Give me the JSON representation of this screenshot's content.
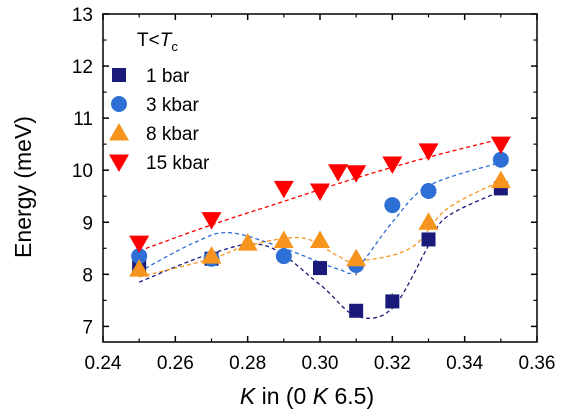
{
  "chart_data": {
    "type": "scatter",
    "title": "",
    "xlabel_italic": "K",
    "xlabel_rest": " in (0 ",
    "xlabel_italic2": "K",
    "xlabel_end": " 6.5)",
    "ylabel": "Energy (meV)",
    "xlim": [
      0.24,
      0.36
    ],
    "ylim": [
      6.7,
      13
    ],
    "xticks": [
      "0.24",
      "0.26",
      "0.28",
      "0.30",
      "0.32",
      "0.34",
      "0.36"
    ],
    "yticks": [
      "7",
      "8",
      "9",
      "10",
      "11",
      "12",
      "13"
    ],
    "grid": false,
    "legend_placement": "top-left",
    "legend_title_main": "T<",
    "legend_title_italic": "T",
    "legend_title_sub": "c",
    "series": [
      {
        "name": "1 bar",
        "marker": "square",
        "color": "#1a1a7a",
        "x": [
          0.25,
          0.27,
          0.3,
          0.31,
          0.32,
          0.33,
          0.35
        ],
        "y": [
          8.15,
          8.3,
          8.12,
          7.3,
          7.48,
          8.67,
          9.65
        ],
        "errors": [
          0,
          0,
          0,
          0,
          0.15,
          0,
          0
        ],
        "trend": [
          [
            0.25,
            7.85
          ],
          [
            0.27,
            8.4
          ],
          [
            0.285,
            8.55
          ],
          [
            0.3,
            7.8
          ],
          [
            0.31,
            7.2
          ],
          [
            0.32,
            7.35
          ],
          [
            0.33,
            8.55
          ],
          [
            0.335,
            9.1
          ],
          [
            0.35,
            9.6
          ]
        ]
      },
      {
        "name": "3 kbar",
        "marker": "circle",
        "color": "#2e6fd6",
        "x": [
          0.25,
          0.27,
          0.29,
          0.31,
          0.32,
          0.33,
          0.35
        ],
        "y": [
          8.35,
          8.3,
          8.35,
          8.18,
          9.33,
          9.6,
          10.2
        ],
        "errors": [
          0,
          0,
          0,
          0.2,
          0,
          0,
          0
        ],
        "trend": [
          [
            0.25,
            8.05
          ],
          [
            0.265,
            8.6
          ],
          [
            0.275,
            8.8
          ],
          [
            0.29,
            8.5
          ],
          [
            0.305,
            8.1
          ],
          [
            0.31,
            8.1
          ],
          [
            0.32,
            9.0
          ],
          [
            0.33,
            9.7
          ],
          [
            0.35,
            10.15
          ]
        ]
      },
      {
        "name": "8 kbar",
        "marker": "triangle-up",
        "color": "#f7941d",
        "x": [
          0.25,
          0.27,
          0.28,
          0.29,
          0.3,
          0.31,
          0.33,
          0.35
        ],
        "y": [
          8.1,
          8.35,
          8.6,
          8.65,
          8.65,
          8.3,
          9.0,
          9.8
        ],
        "errors": [
          0,
          0,
          0,
          0,
          0,
          0,
          0,
          0
        ],
        "trend": [
          [
            0.25,
            7.95
          ],
          [
            0.27,
            8.3
          ],
          [
            0.28,
            8.55
          ],
          [
            0.295,
            8.7
          ],
          [
            0.305,
            8.35
          ],
          [
            0.31,
            8.25
          ],
          [
            0.325,
            8.5
          ],
          [
            0.335,
            9.25
          ],
          [
            0.35,
            9.8
          ]
        ]
      },
      {
        "name": "15 kbar",
        "marker": "triangle-down",
        "color": "#ff0000",
        "x": [
          0.25,
          0.27,
          0.29,
          0.3,
          0.305,
          0.31,
          0.32,
          0.33,
          0.35
        ],
        "y": [
          8.6,
          9.05,
          9.65,
          9.6,
          9.97,
          9.95,
          10.12,
          10.37,
          10.5
        ],
        "errors": [
          0,
          0,
          0,
          0,
          0,
          0,
          0,
          0,
          0
        ],
        "trend": [
          [
            0.25,
            8.45
          ],
          [
            0.27,
            8.95
          ],
          [
            0.29,
            9.4
          ],
          [
            0.31,
            9.85
          ],
          [
            0.33,
            10.25
          ],
          [
            0.35,
            10.6
          ]
        ]
      }
    ]
  }
}
